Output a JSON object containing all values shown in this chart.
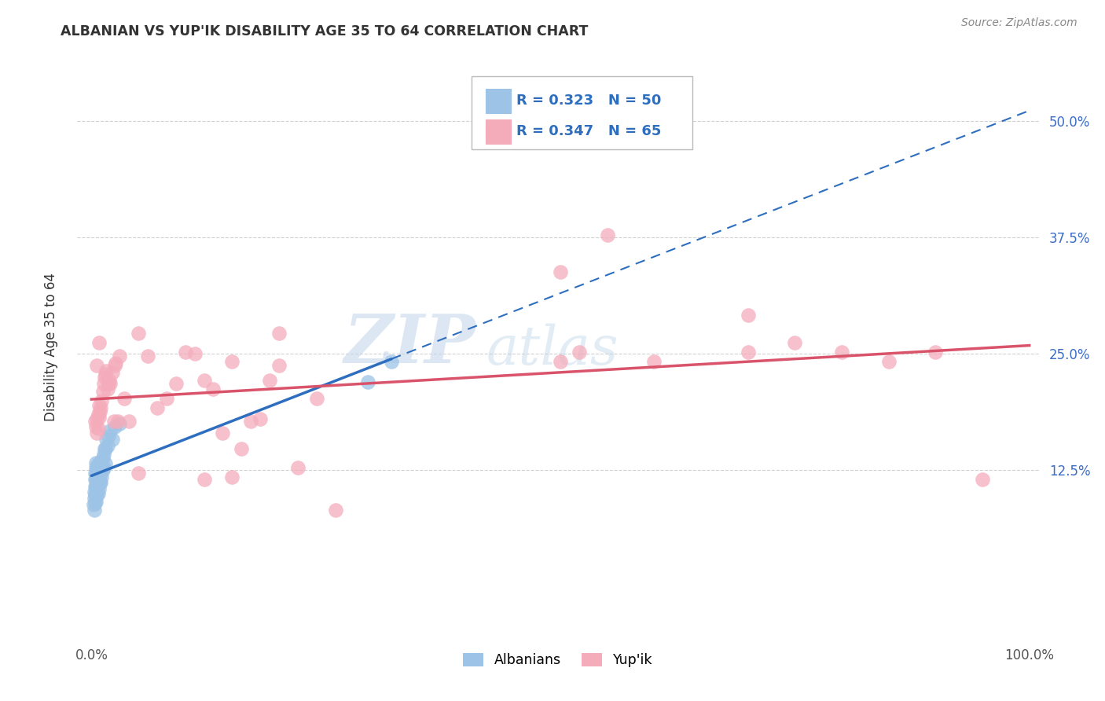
{
  "title": "ALBANIAN VS YUP'IK DISABILITY AGE 35 TO 64 CORRELATION CHART",
  "source": "Source: ZipAtlas.com",
  "ylabel": "Disability Age 35 to 64",
  "legend_label1": "Albanians",
  "legend_label2": "Yup'ik",
  "R1": "0.323",
  "N1": "50",
  "R2": "0.347",
  "N2": "65",
  "color_albanian": "#9DC3E6",
  "color_yupik": "#F4ACBB",
  "color_line_albanian": "#2E6EBF",
  "color_line_yupik": "#D9546A",
  "color_grid": "#CCCCCC",
  "color_watermark": "#C5D8EC",
  "albanian_x": [
    0.002,
    0.003,
    0.003,
    0.003,
    0.004,
    0.004,
    0.004,
    0.004,
    0.004,
    0.005,
    0.005,
    0.005,
    0.005,
    0.005,
    0.005,
    0.005,
    0.006,
    0.006,
    0.006,
    0.006,
    0.007,
    0.007,
    0.007,
    0.007,
    0.008,
    0.008,
    0.008,
    0.009,
    0.009,
    0.01,
    0.01,
    0.01,
    0.011,
    0.011,
    0.012,
    0.012,
    0.013,
    0.013,
    0.014,
    0.015,
    0.015,
    0.016,
    0.017,
    0.018,
    0.02,
    0.022,
    0.025,
    0.03,
    0.295,
    0.32
  ],
  "albanian_y": [
    0.088,
    0.082,
    0.095,
    0.102,
    0.09,
    0.098,
    0.108,
    0.115,
    0.122,
    0.092,
    0.1,
    0.108,
    0.115,
    0.12,
    0.128,
    0.133,
    0.098,
    0.108,
    0.118,
    0.126,
    0.1,
    0.11,
    0.12,
    0.132,
    0.105,
    0.115,
    0.128,
    0.112,
    0.125,
    0.112,
    0.122,
    0.135,
    0.118,
    0.13,
    0.125,
    0.138,
    0.128,
    0.142,
    0.148,
    0.132,
    0.148,
    0.158,
    0.152,
    0.162,
    0.168,
    0.158,
    0.172,
    0.175,
    0.22,
    0.242
  ],
  "yupik_x": [
    0.004,
    0.005,
    0.006,
    0.006,
    0.007,
    0.007,
    0.008,
    0.008,
    0.009,
    0.01,
    0.011,
    0.012,
    0.013,
    0.014,
    0.015,
    0.016,
    0.017,
    0.018,
    0.019,
    0.02,
    0.022,
    0.024,
    0.026,
    0.028,
    0.03,
    0.035,
    0.04,
    0.05,
    0.06,
    0.07,
    0.08,
    0.09,
    0.1,
    0.11,
    0.12,
    0.13,
    0.14,
    0.15,
    0.16,
    0.17,
    0.18,
    0.19,
    0.2,
    0.22,
    0.24,
    0.26,
    0.5,
    0.52,
    0.55,
    0.6,
    0.7,
    0.75,
    0.8,
    0.85,
    0.9,
    0.95,
    0.006,
    0.008,
    0.025,
    0.05,
    0.12,
    0.15,
    0.2,
    0.5,
    0.7
  ],
  "yupik_y": [
    0.178,
    0.172,
    0.165,
    0.18,
    0.17,
    0.185,
    0.182,
    0.195,
    0.188,
    0.192,
    0.2,
    0.21,
    0.218,
    0.225,
    0.228,
    0.232,
    0.212,
    0.218,
    0.222,
    0.218,
    0.23,
    0.178,
    0.24,
    0.178,
    0.248,
    0.202,
    0.178,
    0.122,
    0.248,
    0.192,
    0.202,
    0.218,
    0.252,
    0.25,
    0.222,
    0.212,
    0.165,
    0.242,
    0.148,
    0.178,
    0.18,
    0.222,
    0.238,
    0.128,
    0.202,
    0.082,
    0.242,
    0.252,
    0.378,
    0.242,
    0.252,
    0.262,
    0.252,
    0.242,
    0.252,
    0.115,
    0.238,
    0.262,
    0.238,
    0.272,
    0.115,
    0.118,
    0.272,
    0.338,
    0.292
  ],
  "xlim": [
    -0.015,
    1.01
  ],
  "ylim": [
    -0.055,
    0.57
  ],
  "yticks": [
    0.125,
    0.25,
    0.375,
    0.5
  ],
  "ytick_labels": [
    "12.5%",
    "25.0%",
    "37.5%",
    "50.0%"
  ],
  "xticks": [
    0.0,
    0.25,
    0.5,
    0.75,
    1.0
  ],
  "xtick_labels_show": [
    "0.0%",
    "",
    "",
    "",
    "100.0%"
  ]
}
